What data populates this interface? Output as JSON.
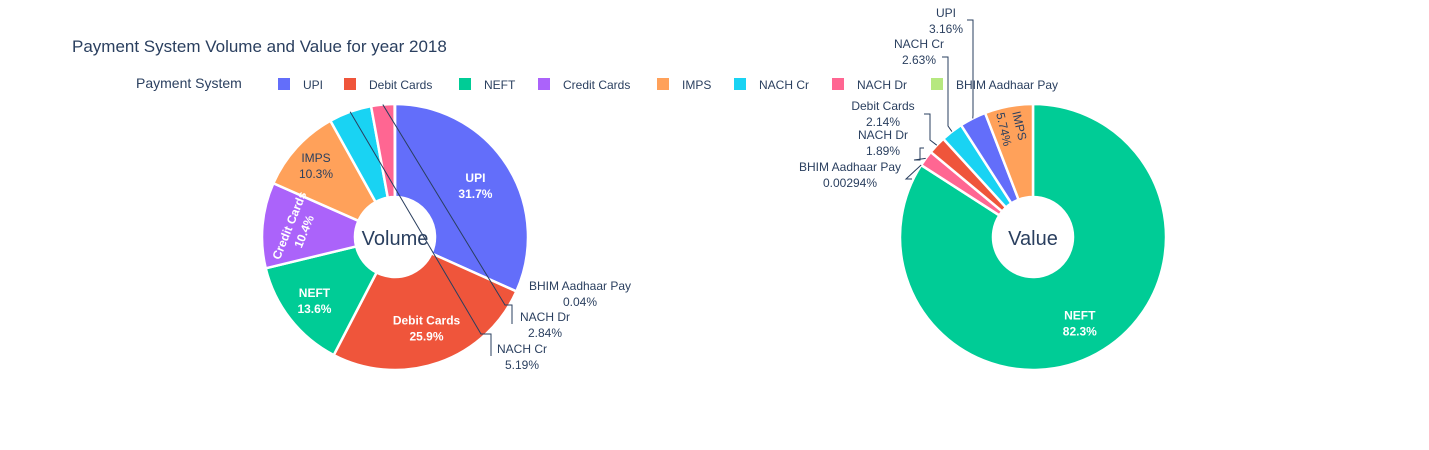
{
  "chart_data": {
    "type": "pie",
    "title": "Payment System Volume and Value for year 2018",
    "legend": {
      "title": "Payment System",
      "placement": "top",
      "items": [
        {
          "name": "UPI",
          "color": "#636efa"
        },
        {
          "name": "Debit Cards",
          "color": "#ef553b"
        },
        {
          "name": "NEFT",
          "color": "#00cc96"
        },
        {
          "name": "Credit Cards",
          "color": "#ab63fa"
        },
        {
          "name": "IMPS",
          "color": "#ffa15a"
        },
        {
          "name": "NACH Cr",
          "color": "#19d3f3"
        },
        {
          "name": "NACH Dr",
          "color": "#ff6692"
        },
        {
          "name": "BHIM Aadhaar Pay",
          "color": "#b6e880"
        }
      ]
    },
    "pies": [
      {
        "center_label": "Volume",
        "slices": [
          {
            "label": "UPI",
            "value": 31.7,
            "text": "31.7%"
          },
          {
            "label": "Debit Cards",
            "value": 25.9,
            "text": "25.9%"
          },
          {
            "label": "NEFT",
            "value": 13.6,
            "text": "13.6%"
          },
          {
            "label": "Credit Cards",
            "value": 10.4,
            "text": "10.4%"
          },
          {
            "label": "IMPS",
            "value": 10.3,
            "text": "10.3%"
          },
          {
            "label": "NACH Cr",
            "value": 5.19,
            "text": "5.19%"
          },
          {
            "label": "NACH Dr",
            "value": 2.84,
            "text": "2.84%"
          },
          {
            "label": "BHIM Aadhaar Pay",
            "value": 0.04,
            "text": "0.04%"
          }
        ]
      },
      {
        "center_label": "Value",
        "slices": [
          {
            "label": "NEFT",
            "value": 82.3,
            "text": "82.3%"
          },
          {
            "label": "BHIM Aadhaar Pay",
            "value": 0.00294,
            "text": "0.00294%"
          },
          {
            "label": "NACH Dr",
            "value": 1.89,
            "text": "1.89%"
          },
          {
            "label": "Debit Cards",
            "value": 2.14,
            "text": "2.14%"
          },
          {
            "label": "NACH Cr",
            "value": 2.63,
            "text": "2.63%"
          },
          {
            "label": "UPI",
            "value": 3.16,
            "text": "3.16%"
          },
          {
            "label": "IMPS",
            "value": 5.74,
            "text": "5.74%"
          }
        ]
      }
    ]
  }
}
